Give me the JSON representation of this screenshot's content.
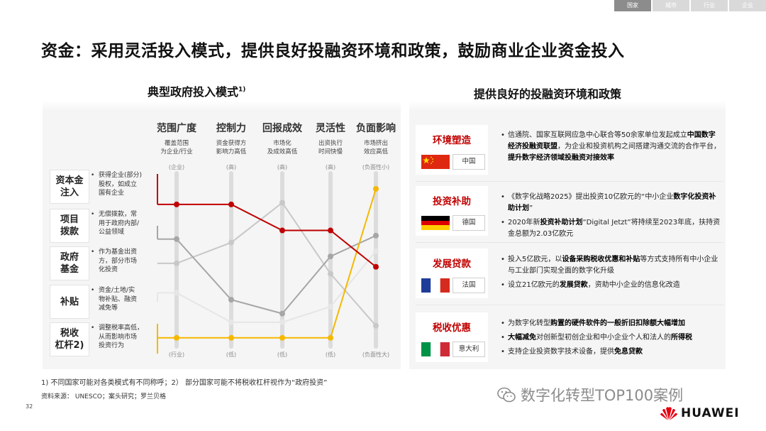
{
  "top_tabs": [
    {
      "label": "国家",
      "active": true
    },
    {
      "label": "城市",
      "active": false
    },
    {
      "label": "行业",
      "active": false
    },
    {
      "label": "企业",
      "active": false
    }
  ],
  "page_title": "资金：采用灵活投入模式，提供良好投融资环境和政策，鼓励商业企业资金投入",
  "left_section": {
    "title": "典型政府投入模式",
    "title_sup": "1)"
  },
  "right_section": {
    "title": "提供良好的投融资环境和政策"
  },
  "chart_data": {
    "type": "line",
    "columns": [
      {
        "title": "范围广度",
        "sub": [
          "覆盖范围",
          "为企业/行业"
        ],
        "top": "(企业)",
        "bottom": "(行业)"
      },
      {
        "title": "控制力",
        "sub": [
          "资金获得方",
          "影响力高低"
        ],
        "top": "(高)",
        "bottom": "(低)"
      },
      {
        "title": "回报成效",
        "sub": [
          "市场化",
          "及成效高低"
        ],
        "top": "(高)",
        "bottom": "(低)"
      },
      {
        "title": "灵活性",
        "sub": [
          "出资执行",
          "时间快慢"
        ],
        "top": "(高)",
        "bottom": "(低)"
      },
      {
        "title": "负面影响",
        "sub": [
          "市场挤出",
          "效应高低"
        ],
        "top": "(负面性小)",
        "bottom": "(负面性大)"
      }
    ],
    "rows": [
      {
        "label": "资本金注入",
        "label_lines": [
          "资本金",
          "注入"
        ],
        "desc": [
          "获得企业(部分)",
          "股权，如成立",
          "国有企业"
        ]
      },
      {
        "label": "项目拨款",
        "label_lines": [
          "项目",
          "拨款"
        ],
        "desc": [
          "无偿拨款，常",
          "用于政府内部/",
          "公益领域"
        ]
      },
      {
        "label": "政府基金",
        "label_lines": [
          "政府",
          "基金"
        ],
        "desc": [
          "作为基金出资",
          "方，部分市场",
          "化投资"
        ]
      },
      {
        "label": "补贴",
        "label_lines": [
          "补贴"
        ],
        "desc": [
          "资金/土地/实",
          "物补贴、融资",
          "减免等"
        ]
      },
      {
        "label": "税收杠杆2)",
        "label_lines": [
          "税收",
          "杠杆2)"
        ],
        "desc": [
          "调整税率高低，",
          "从而影响市场",
          "投资行为"
        ]
      }
    ],
    "ylim": [
      0,
      1
    ],
    "series": [
      {
        "row": 0,
        "color": "#c00000",
        "values": [
          0.82,
          0.82,
          0.67,
          0.67,
          0.46
        ]
      },
      {
        "row": 1,
        "color": "#a6a6a6",
        "values": [
          0.62,
          0.27,
          0.19,
          0.52,
          0.64
        ]
      },
      {
        "row": 2,
        "color": "#c8c8c8",
        "values": [
          0.48,
          0.6,
          0.83,
          0.42,
          0.12
        ]
      },
      {
        "row": 3,
        "color": "#e6e6e6",
        "values": [
          0.31,
          0.14,
          0.14,
          0.23,
          0.55
        ]
      },
      {
        "row": 4,
        "color": "#f5b800",
        "values": [
          0.05,
          0.05,
          0.05,
          0.05,
          0.91
        ]
      }
    ]
  },
  "policies": [
    {
      "name": "环境塑造",
      "country": "中国",
      "flag": "cn",
      "items": [
        [
          {
            "t": "信通院、国家互联网应急中心联合等50余家单位发起成立",
            "b": false
          },
          {
            "t": "中国数字经济投融资联盟",
            "b": true
          },
          {
            "t": "，为企业和投资机构之间搭建沟通交流的合作平台，",
            "b": false
          },
          {
            "t": "提升数字经济领域投融资对接效率",
            "b": true
          }
        ]
      ]
    },
    {
      "name": "投资补助",
      "country": "德国",
      "flag": "de",
      "items": [
        [
          {
            "t": "《数字化战略2025》提出投资10亿欧元的“中小企业",
            "b": false
          },
          {
            "t": "数字化投资补助计划",
            "b": true
          },
          {
            "t": "”",
            "b": false
          }
        ],
        [
          {
            "t": "2020年新",
            "b": false
          },
          {
            "t": "投资补助计划",
            "b": true
          },
          {
            "t": "“Digital Jetzt”将持续至2023年底，扶持资金总额为2.03亿欧元",
            "b": false
          }
        ]
      ]
    },
    {
      "name": "发展贷款",
      "country": "法国",
      "flag": "fr",
      "items": [
        [
          {
            "t": "投入5亿欧元，以",
            "b": false
          },
          {
            "t": "设备采购税收优惠和补贴",
            "b": true
          },
          {
            "t": "等方式支持所有中小企业与工业部门实现全面的数字化升级",
            "b": false
          }
        ],
        [
          {
            "t": "设立21亿欧元的",
            "b": false
          },
          {
            "t": "发展贷款",
            "b": true
          },
          {
            "t": "，资助中小企业的信息化改造",
            "b": false
          }
        ]
      ]
    },
    {
      "name": "税收优惠",
      "country": "意大利",
      "flag": "it",
      "items": [
        [
          {
            "t": "为数字化转型",
            "b": false
          },
          {
            "t": "购置的硬件软件的一般折旧扣除额大幅增加",
            "b": true
          }
        ],
        [
          {
            "t": "大幅减免",
            "b": true
          },
          {
            "t": "对创新型初创企业和中小企业个人和法人的",
            "b": false
          },
          {
            "t": "所得税",
            "b": true
          }
        ],
        [
          {
            "t": "支持企业投资数字技术设备，提供",
            "b": false
          },
          {
            "t": "免息贷款",
            "b": true
          }
        ]
      ]
    }
  ],
  "footnote": "1) 不同国家可能对各类模式有不同称呼；2） 部分国家可能不将税收杠杆视作为“政府投资”",
  "source": "资料来源： UNESCO；案头研究；罗兰贝格",
  "page_number": "32",
  "watermark": "数字化转型TOP100案例",
  "brand": "HUAWEI"
}
